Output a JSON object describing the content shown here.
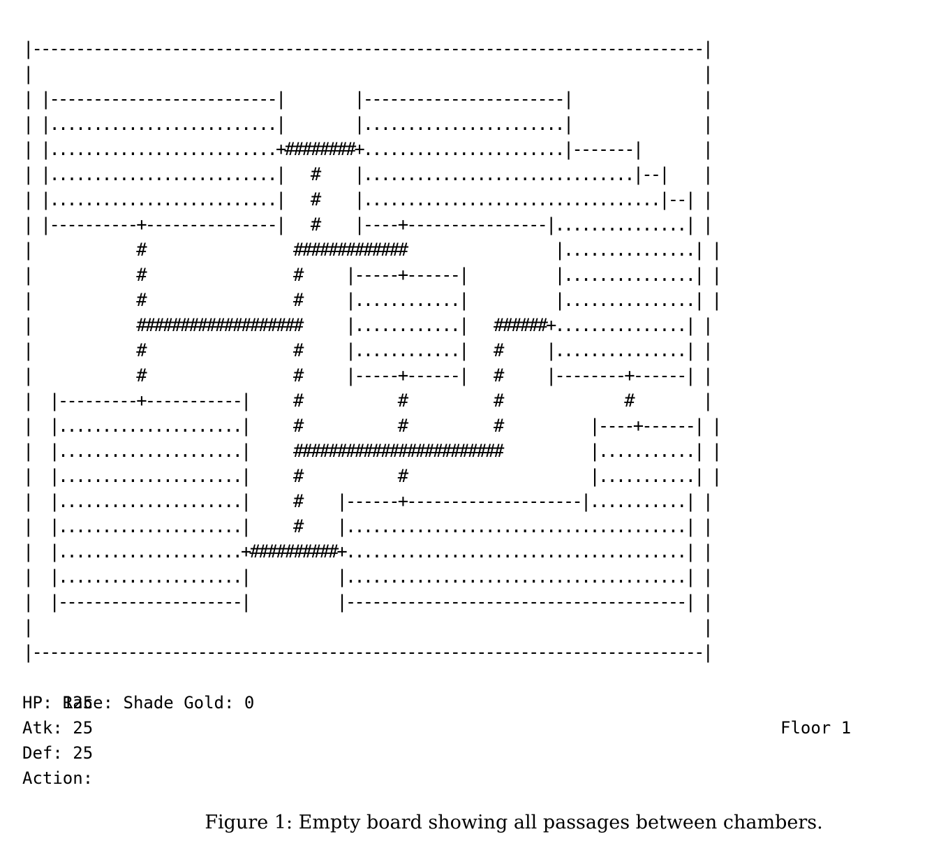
{
  "board": {
    "lines": [
      "|-----------------------------------------------------------------------------|",
      "|                                                                             |",
      "| |--------------------------|        |-----------------------|               |",
      "| |..........................|        |.......................|               |",
      "| |..........................+########+.......................|-------|       |",
      "| |..........................|   #    |...............................|--|    |",
      "| |..........................|   #    |..................................|--| |",
      "| |----------+---------------|   #    |----+----------------|...............| |",
      "|            #                 #############                 |...............| |",
      "|            #                 #     |-----+------|          |...............| |",
      "|            #                 #     |............|          |...............| |",
      "|            ###################     |............|   ######+...............| |",
      "|            #                 #     |............|   #     |...............| |",
      "|            #                 #     |-----+------|   #     |--------+------| |",
      "|  |---------+-----------|     #           #          #              #        |",
      "|  |.....................|     #           #          #          |----+------| |",
      "|  |.....................|     ########################          |...........| |",
      "|  |.....................|     #           #                     |...........| |",
      "|  |.....................|     #    |------+--------------------|...........| |",
      "|  |.....................|     #    |.......................................| |",
      "|  |.....................+##########+.......................................| |",
      "|  |.....................|          |.......................................| |",
      "|  |---------------------|          |---------------------------------------| |",
      "|                                                                             |",
      "|-----------------------------------------------------------------------------|"
    ]
  },
  "status": {
    "race": "Race: Shade Gold: 0",
    "floor": "Floor 1",
    "hp": "HP: 125",
    "atk": "Atk: 25",
    "def": "Def: 25",
    "action": "Action:"
  },
  "caption": "Figure 1: Empty board showing all passages between chambers."
}
